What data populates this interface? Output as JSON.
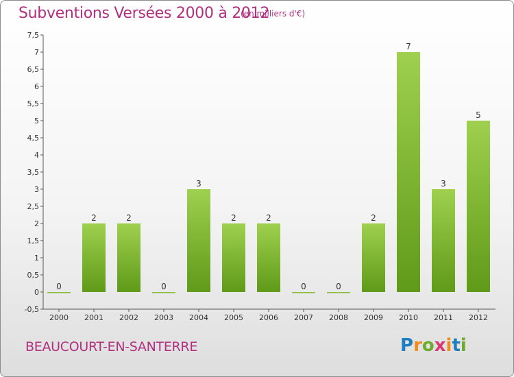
{
  "header": {
    "title": "Subventions Versées 2000 à 2012",
    "subtitle": "(en milliers d'€)"
  },
  "footer": {
    "commune": "BEAUCOURT-EN-SANTERRE",
    "logo": {
      "text": "Proxiti",
      "letters": [
        "P",
        "r",
        "o",
        "x",
        "i",
        "t",
        "i"
      ],
      "colors": [
        "#1e7fc0",
        "#f08a1c",
        "#6cab2b",
        "#d63a6e",
        "#f08a1c",
        "#1e7fc0",
        "#6cab2b"
      ]
    }
  },
  "chart_data": {
    "type": "bar",
    "categories": [
      "2000",
      "2001",
      "2002",
      "2003",
      "2004",
      "2005",
      "2006",
      "2007",
      "2008",
      "2009",
      "2010",
      "2011",
      "2012"
    ],
    "values": [
      0,
      2,
      2,
      0,
      3,
      2,
      2,
      0,
      0,
      2,
      7,
      3,
      5
    ],
    "data_labels": [
      "0",
      "2",
      "2",
      "0",
      "3",
      "2",
      "2",
      "0",
      "0",
      "2",
      "7",
      "3",
      "5"
    ],
    "ylim": [
      -0.5,
      7.5
    ],
    "yticks": [
      -0.5,
      0,
      0.5,
      1,
      1.5,
      2,
      2.5,
      3,
      3.5,
      4,
      4.5,
      5,
      5.5,
      6,
      6.5,
      7,
      7.5
    ],
    "ytick_labels": [
      "-0,5",
      "0",
      "0,5",
      "1",
      "1,5",
      "2",
      "2,5",
      "3",
      "3,5",
      "4",
      "4,5",
      "5",
      "5,5",
      "6",
      "6,5",
      "7",
      "7,5"
    ],
    "title": "Subventions Versées 2000 à 2012",
    "xlabel": "",
    "ylabel": "",
    "grid": false,
    "bar_color": "#8cc63f",
    "bar_color_dark": "#5f9a18"
  }
}
